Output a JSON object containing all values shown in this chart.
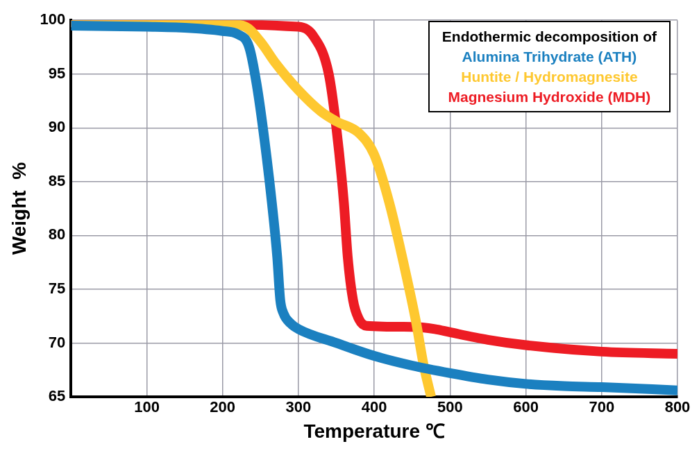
{
  "chart_data": {
    "type": "line",
    "xlabel": "Temperature ℃",
    "ylabel": "Weight  %",
    "legend_title": "Endothermic decomposition of",
    "legend": "top right",
    "grid": true,
    "marker": "none",
    "line_style": "solid",
    "xlim": [
      0,
      800
    ],
    "xticks": [
      100,
      200,
      300,
      400,
      500,
      600,
      700,
      800
    ],
    "ylim": [
      65,
      100
    ],
    "yticks": [
      65,
      70,
      75,
      80,
      85,
      90,
      95,
      100
    ],
    "series": [
      {
        "name": "Alumina Trihydrate (ATH)",
        "color": "#1b80c0",
        "x": [
          0,
          100,
          150,
          200,
          220,
          235,
          245,
          255,
          265,
          272,
          276,
          280,
          290,
          300,
          350,
          400,
          450,
          500,
          550,
          600,
          650,
          700,
          800
        ],
        "values": [
          99.5,
          99.4,
          99.3,
          99,
          98.7,
          97.5,
          94,
          89,
          83,
          78,
          74,
          72.8,
          71.8,
          71.3,
          70,
          68.8,
          67.9,
          67.2,
          66.6,
          66.2,
          66,
          65.9,
          65.6
        ]
      },
      {
        "name": "Huntite / Hydromagnesite",
        "color": "#fec830",
        "x": [
          0,
          200,
          230,
          250,
          270,
          300,
          330,
          350,
          380,
          400,
          420,
          440,
          455,
          465,
          475
        ],
        "values": [
          99.8,
          99.7,
          99.4,
          98,
          96,
          93.5,
          91.5,
          90.6,
          89.5,
          87.5,
          83,
          77,
          72,
          68,
          65
        ]
      },
      {
        "name": "Magnesium Hydroxide (MDH)",
        "color": "#ed1c24",
        "x": [
          0,
          300,
          320,
          340,
          350,
          360,
          365,
          372,
          380,
          390,
          450,
          480,
          500,
          550,
          600,
          700,
          800
        ],
        "values": [
          99.8,
          99.4,
          98.5,
          95,
          90,
          83,
          78,
          74,
          72.2,
          71.6,
          71.5,
          71.3,
          71,
          70.3,
          69.8,
          69.2,
          69
        ]
      }
    ]
  }
}
